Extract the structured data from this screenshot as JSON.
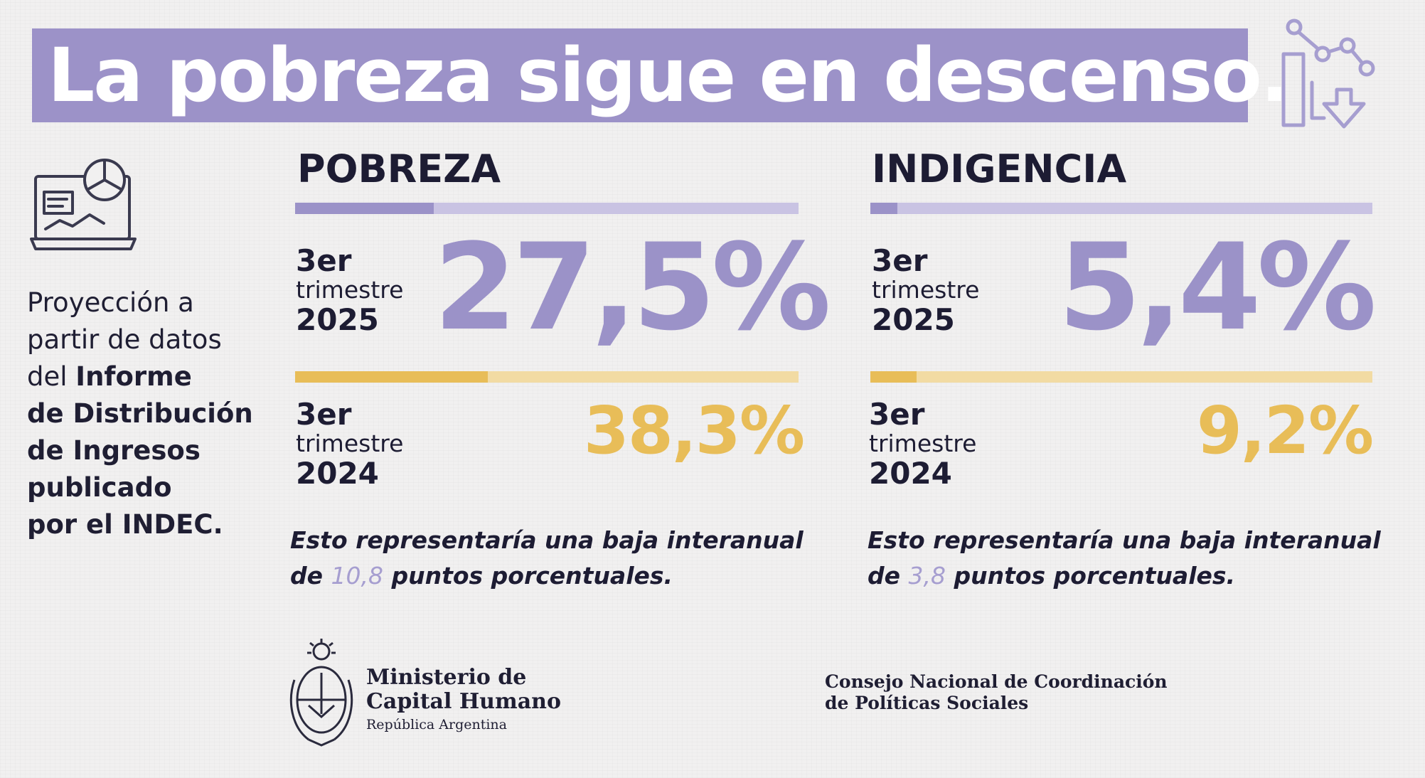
{
  "title": "La pobreza sigue en descenso.",
  "side_note": {
    "line1": "Proyección a",
    "line2": "partir de datos",
    "line3_pre": "del ",
    "line3_bold": "Informe",
    "line4": "de Distribución",
    "line5": "de Ingresos",
    "line6": "publicado",
    "line7": "por el INDEC."
  },
  "colors": {
    "purple": "#9b92c8",
    "purple_light": "#c9c3e3",
    "yellow": "#e8bd58",
    "yellow_light": "#f2dba3",
    "dark_text": "#1d1c33"
  },
  "icons": [
    "chart-down-icon",
    "laptop-dashboard-icon",
    "coat-of-arms-icon"
  ],
  "chart_data": [
    {
      "type": "bar",
      "heading": "POBREZA",
      "period_current": {
        "num": "3er",
        "word": "trimestre",
        "year": "2025"
      },
      "period_previous": {
        "num": "3er",
        "word": "trimestre",
        "year": "2024"
      },
      "value_current": 27.5,
      "value_current_label": "27,5%",
      "value_previous": 38.3,
      "value_previous_label": "38,3%",
      "ylim": [
        0,
        100
      ],
      "note_pre": "Esto representaría una baja interanual",
      "note_line2_pre": "de ",
      "note_highlight": "10,8",
      "note_line2_post": " puntos porcentuales."
    },
    {
      "type": "bar",
      "heading": "INDIGENCIA",
      "period_current": {
        "num": "3er",
        "word": "trimestre",
        "year": "2025"
      },
      "period_previous": {
        "num": "3er",
        "word": "trimestre",
        "year": "2024"
      },
      "value_current": 5.4,
      "value_current_label": "5,4%",
      "value_previous": 9.2,
      "value_previous_label": "9,2%",
      "ylim": [
        0,
        100
      ],
      "note_pre": "Esto representaría una baja interanual",
      "note_line2_pre": "de ",
      "note_highlight": "3,8",
      "note_line2_post": " puntos porcentuales."
    }
  ],
  "footer": {
    "ministry_line1": "Ministerio de",
    "ministry_line2": "Capital Humano",
    "ministry_line3": "República Argentina",
    "council_line1": "Consejo Nacional de Coordinación",
    "council_line2": "de Políticas Sociales"
  }
}
